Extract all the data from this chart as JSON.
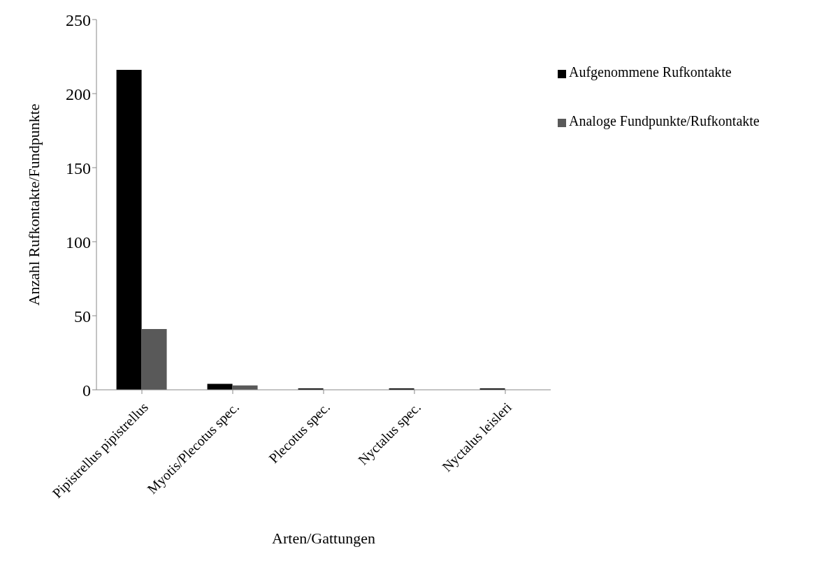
{
  "chart_data": {
    "type": "bar",
    "xlabel": "Arten/Gattungen",
    "ylabel": "Anzahl Rufkontakte/Fundpunkte",
    "categories": [
      "Pipistrellus pipistrellus",
      "Myotis/Plecotus spec.",
      "Plecotus spec.",
      "Nyctalus spec.",
      "Nyctalus leisleri"
    ],
    "series": [
      {
        "name": "Aufgenommene Rufkontakte",
        "color": "#000000",
        "values": [
          216,
          4,
          1,
          1,
          1
        ]
      },
      {
        "name": "Analoge Fundpunkte/Rufkontakte",
        "color": "#595959",
        "values": [
          41,
          3,
          null,
          null,
          null
        ]
      }
    ],
    "ylim": [
      0,
      250
    ],
    "yticks": [
      0,
      50,
      100,
      150,
      200,
      250
    ],
    "grid": false,
    "legend": "right"
  }
}
